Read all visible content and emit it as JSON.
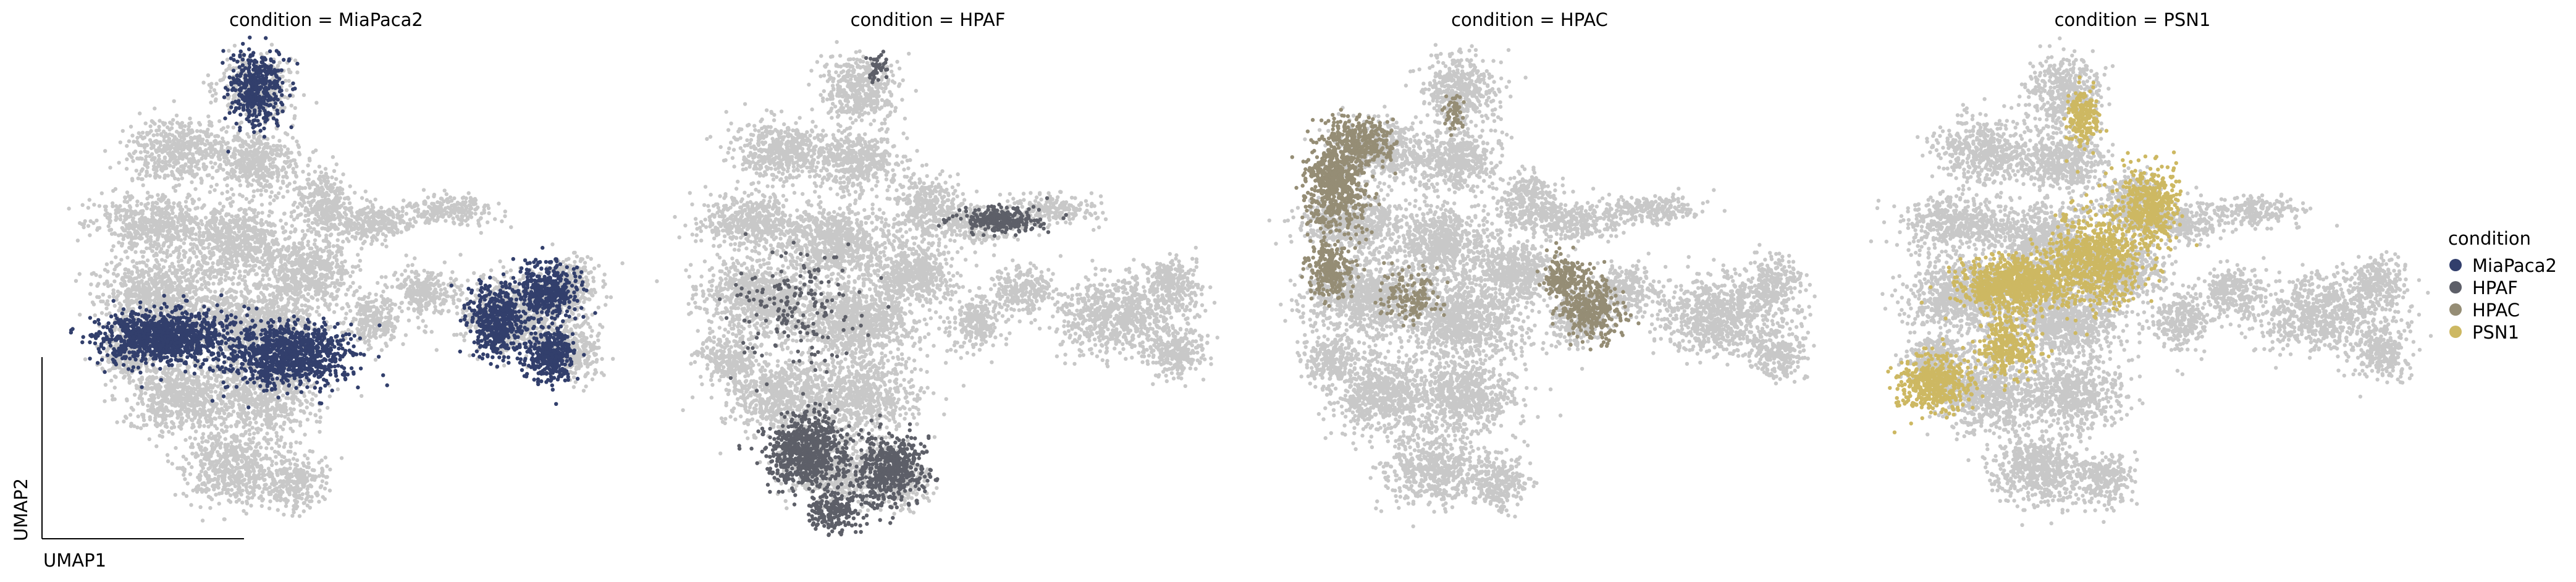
{
  "chart_data": {
    "type": "scatter",
    "axis_labels": {
      "x": "UMAP1",
      "y": "UMAP2"
    },
    "background_color": "#c8c8c8",
    "legend": {
      "title": "condition",
      "placement": "right",
      "entries": [
        {
          "label": "MiaPaca2",
          "color": "#323f6c"
        },
        {
          "label": "HPAF",
          "color": "#5d5f68"
        },
        {
          "label": "HPAC",
          "color": "#958d75"
        },
        {
          "label": "PSN1",
          "color": "#cdb862"
        }
      ]
    },
    "panels": [
      {
        "title": "condition = MiaPaca2",
        "highlight": "MiaPaca2",
        "color": "#323f6c"
      },
      {
        "title": "condition = HPAF",
        "highlight": "HPAF",
        "color": "#5d5f68"
      },
      {
        "title": "condition = HPAC",
        "highlight": "HPAC",
        "color": "#958d75"
      },
      {
        "title": "condition = PSN1",
        "highlight": "PSN1",
        "color": "#cdb862"
      }
    ],
    "grid": false
  }
}
